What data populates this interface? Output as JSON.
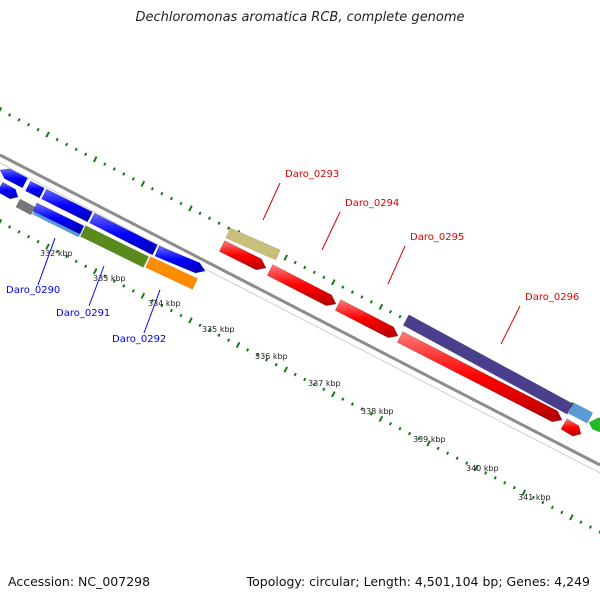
{
  "title": "Dechloromonas aromatica RCB, complete genome",
  "accession": "Accession: NC_007298",
  "topology": "Topology: circular; Length: 4,501,104 bp; Genes: 4,249",
  "ticks": [
    "332 kbp",
    "333 kbp",
    "334 kbp",
    "335 kbp",
    "336 kbp",
    "337 kbp",
    "338 kbp",
    "339 kbp",
    "340 kbp",
    "341 kbp"
  ],
  "genes_reverse": [
    {
      "name": "Daro_0290",
      "color": "#0000ee"
    },
    {
      "name": "Daro_0291",
      "color": "#0000ee"
    },
    {
      "name": "Daro_0292",
      "color": "#0000ee"
    }
  ],
  "genes_forward": [
    {
      "name": "Daro_0293",
      "color": "#dd0000"
    },
    {
      "name": "Daro_0294",
      "color": "#dd0000"
    },
    {
      "name": "Daro_0295",
      "color": "#dd0000"
    },
    {
      "name": "Daro_0296",
      "color": "#dd0000"
    }
  ],
  "colors": {
    "backbone": "#8c8c8c",
    "tick_dots": "#1a7a1a",
    "gene_forward": "#ff0000",
    "gene_reverse": "#0000ff",
    "cog_khaki": "#c8c07a",
    "cog_purple": "#4a3f8c",
    "cog_olive": "#5a8a1e",
    "cog_orange": "#ff8c00",
    "cog_lightblue": "#5b9bd5",
    "cog_gray": "#777777",
    "cog_green": "#22bb22"
  }
}
